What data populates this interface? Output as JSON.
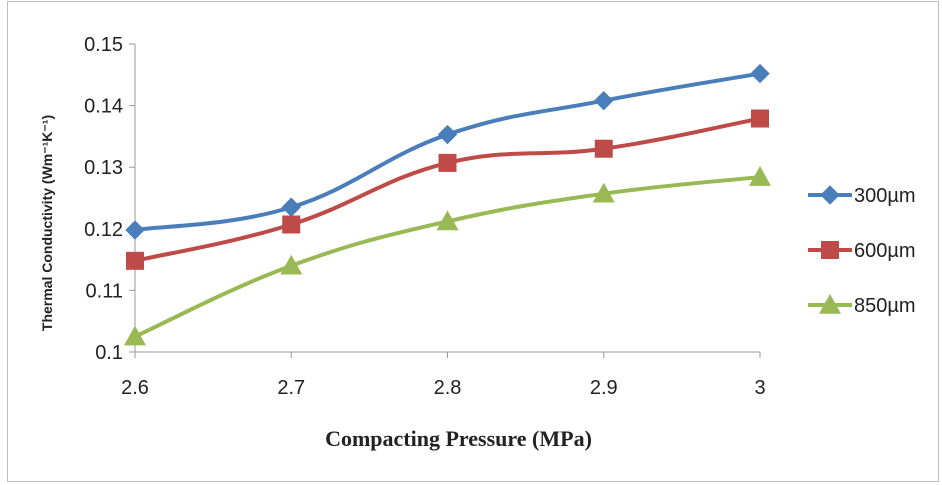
{
  "chart_data": {
    "type": "line",
    "title": "",
    "xlabel": "Compacting Pressure (MPa)",
    "ylabel": "Thermal Conductivity (Wm⁻¹K⁻¹)",
    "x": [
      2.6,
      2.7,
      2.8,
      2.9,
      3
    ],
    "x_tick_labels": [
      "2.6",
      "2.7",
      "2.8",
      "2.9",
      "3"
    ],
    "y_tick_labels": [
      "0.1",
      "0.11",
      "0.12",
      "0.13",
      "0.14",
      "0.15"
    ],
    "ylim": [
      0.1,
      0.15
    ],
    "grid": false,
    "legend_position": "right",
    "series": [
      {
        "name": "300µm",
        "color": "#4a7ebb",
        "marker": "diamond",
        "values": [
          0.1198,
          0.1235,
          0.1353,
          0.1408,
          0.1452
        ]
      },
      {
        "name": "600µm",
        "color": "#be4b48",
        "marker": "square",
        "values": [
          0.1148,
          0.1207,
          0.1307,
          0.133,
          0.1379
        ]
      },
      {
        "name": "850µm",
        "color": "#98b954",
        "marker": "triangle",
        "values": [
          0.1025,
          0.114,
          0.1212,
          0.1257,
          0.1284
        ]
      }
    ]
  }
}
